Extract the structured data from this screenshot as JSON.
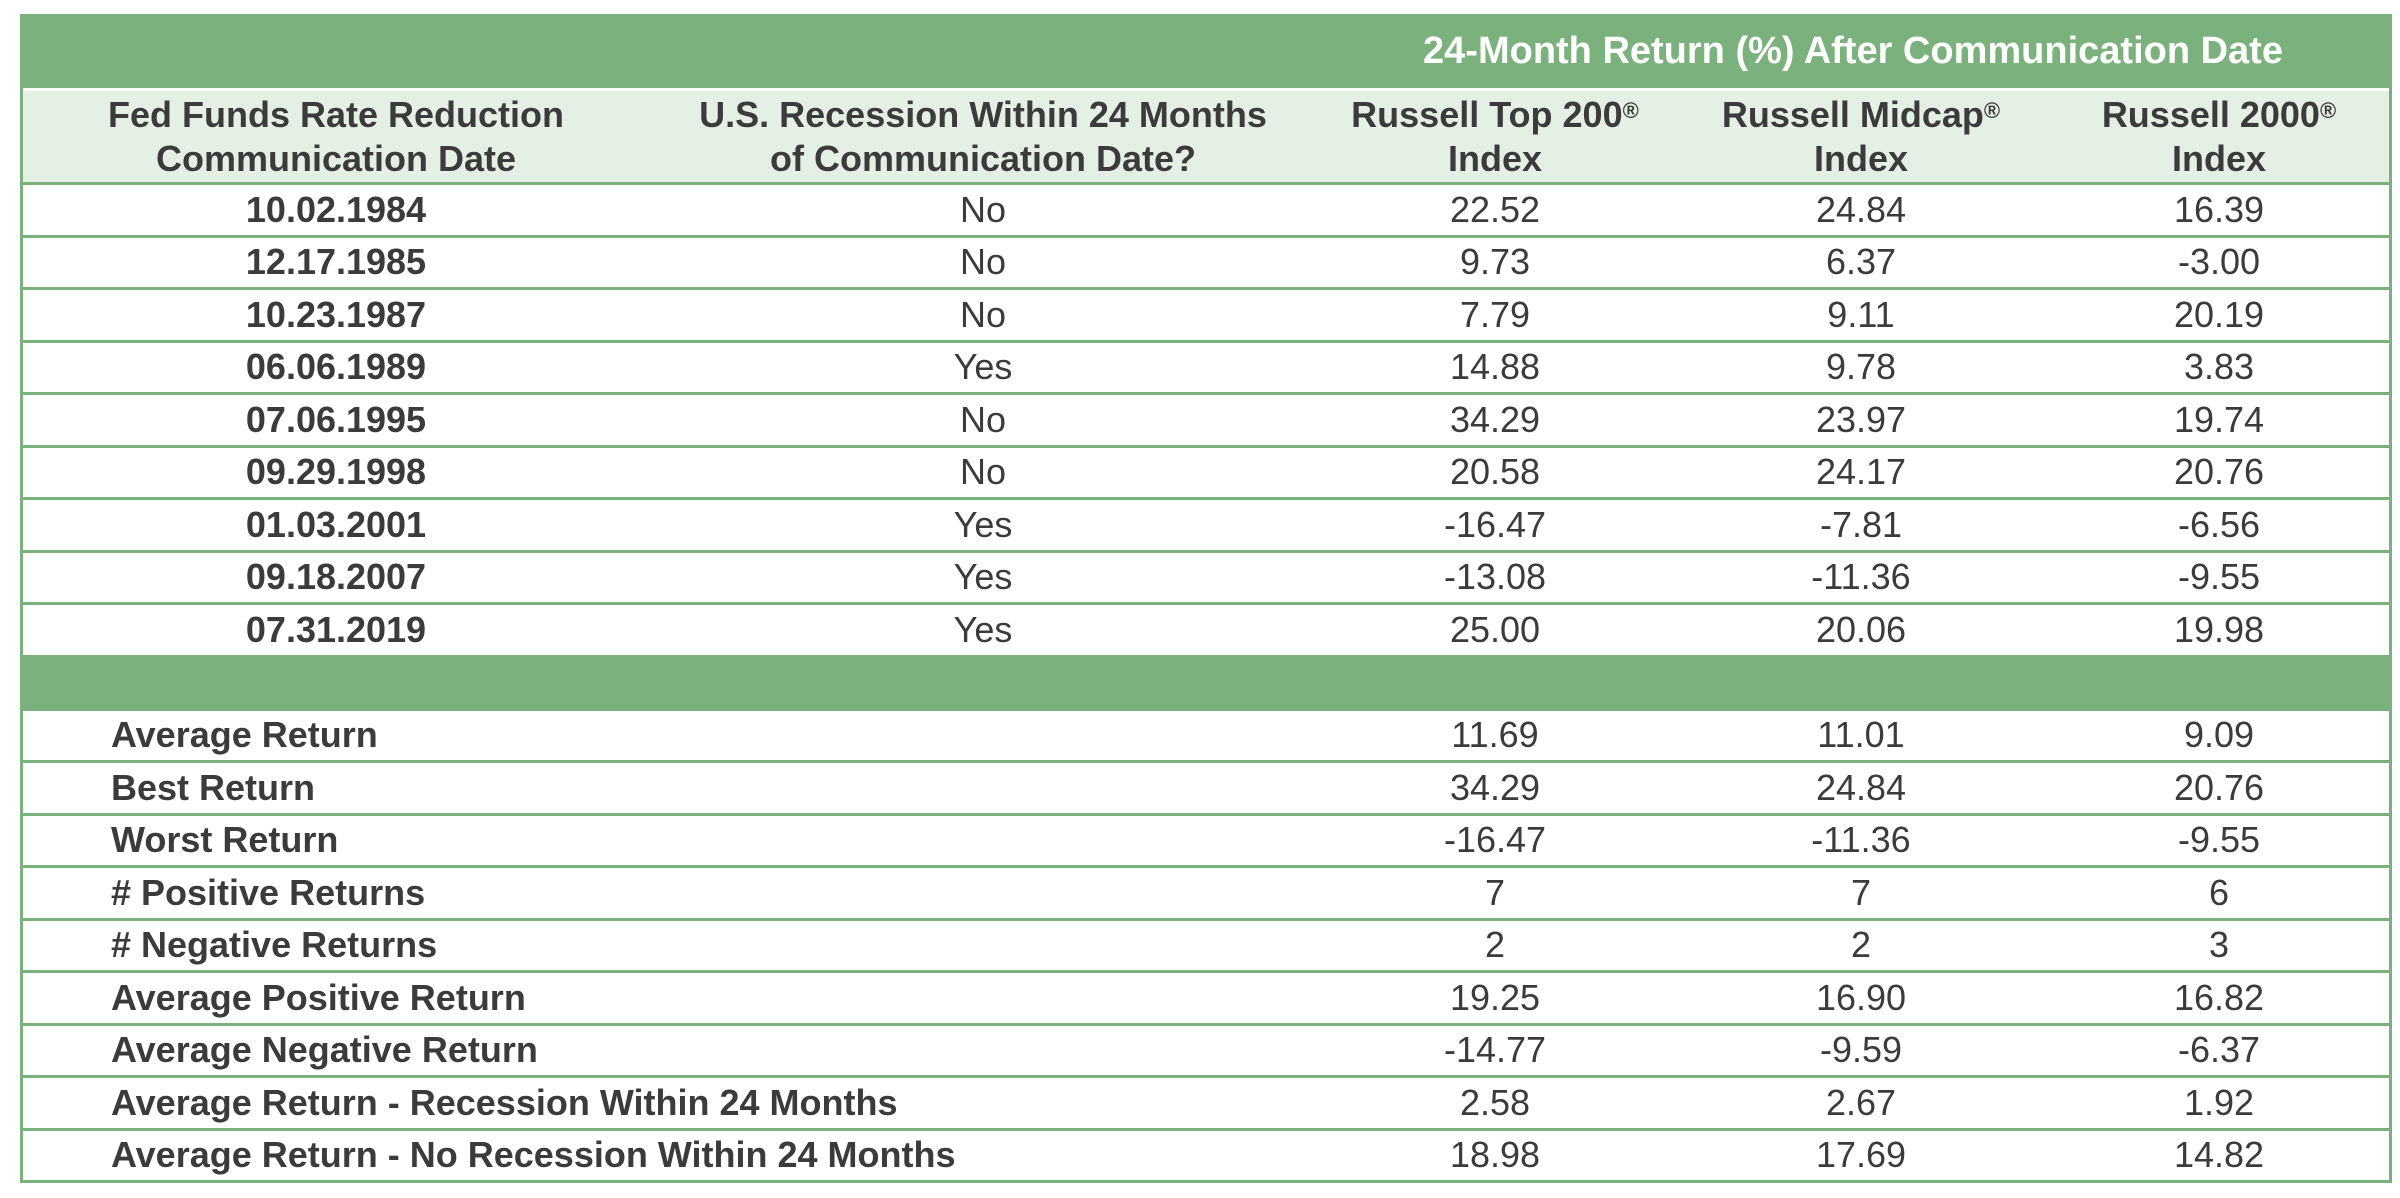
{
  "super_header": "24-Month Return (%) After Communication Date",
  "headers": {
    "date_line1": "Fed Funds Rate Reduction",
    "date_line2": "Communication Date",
    "recession_line1": "U.S. Recession Within 24 Months",
    "recession_line2": "of Communication Date?",
    "top200_line1": "Russell Top 200",
    "top200_line2": "Index",
    "midcap_line1": "Russell Midcap",
    "midcap_line2": "Index",
    "r2000_line1": "Russell 2000",
    "r2000_line2": "Index",
    "registered": "®"
  },
  "rows": [
    {
      "date": "10.02.1984",
      "recession": "No",
      "top200": "22.52",
      "midcap": "24.84",
      "r2000": "16.39"
    },
    {
      "date": "12.17.1985",
      "recession": "No",
      "top200": "9.73",
      "midcap": "6.37",
      "r2000": "-3.00"
    },
    {
      "date": "10.23.1987",
      "recession": "No",
      "top200": "7.79",
      "midcap": "9.11",
      "r2000": "20.19"
    },
    {
      "date": "06.06.1989",
      "recession": "Yes",
      "top200": "14.88",
      "midcap": "9.78",
      "r2000": "3.83"
    },
    {
      "date": "07.06.1995",
      "recession": "No",
      "top200": "34.29",
      "midcap": "23.97",
      "r2000": "19.74"
    },
    {
      "date": "09.29.1998",
      "recession": "No",
      "top200": "20.58",
      "midcap": "24.17",
      "r2000": "20.76"
    },
    {
      "date": "01.03.2001",
      "recession": "Yes",
      "top200": "-16.47",
      "midcap": "-7.81",
      "r2000": "-6.56"
    },
    {
      "date": "09.18.2007",
      "recession": "Yes",
      "top200": "-13.08",
      "midcap": "-11.36",
      "r2000": "-9.55"
    },
    {
      "date": "07.31.2019",
      "recession": "Yes",
      "top200": "25.00",
      "midcap": "20.06",
      "r2000": "19.98"
    }
  ],
  "stats": [
    {
      "label": "Average Return",
      "top200": "11.69",
      "midcap": "11.01",
      "r2000": "9.09"
    },
    {
      "label": "Best Return",
      "top200": "34.29",
      "midcap": "24.84",
      "r2000": "20.76"
    },
    {
      "label": "Worst Return",
      "top200": "-16.47",
      "midcap": "-11.36",
      "r2000": "-9.55"
    },
    {
      "label": "# Positive Returns",
      "top200": "7",
      "midcap": "7",
      "r2000": "6"
    },
    {
      "label": "# Negative Returns",
      "top200": "2",
      "midcap": "2",
      "r2000": "3"
    },
    {
      "label": "Average Positive Return",
      "top200": "19.25",
      "midcap": "16.90",
      "r2000": "16.82"
    },
    {
      "label": "Average Negative Return",
      "top200": "-14.77",
      "midcap": "-9.59",
      "r2000": "-6.37"
    },
    {
      "label": "Average Return - Recession Within 24 Months",
      "top200": "2.58",
      "midcap": "2.67",
      "r2000": "1.92"
    },
    {
      "label": "Average Return - No Recession Within 24 Months",
      "top200": "18.98",
      "midcap": "17.69",
      "r2000": "14.82"
    }
  ],
  "colors": {
    "accent_green": "#7bb17c",
    "header_bg": "#e5f0e4",
    "text": "#3b3b3b"
  }
}
